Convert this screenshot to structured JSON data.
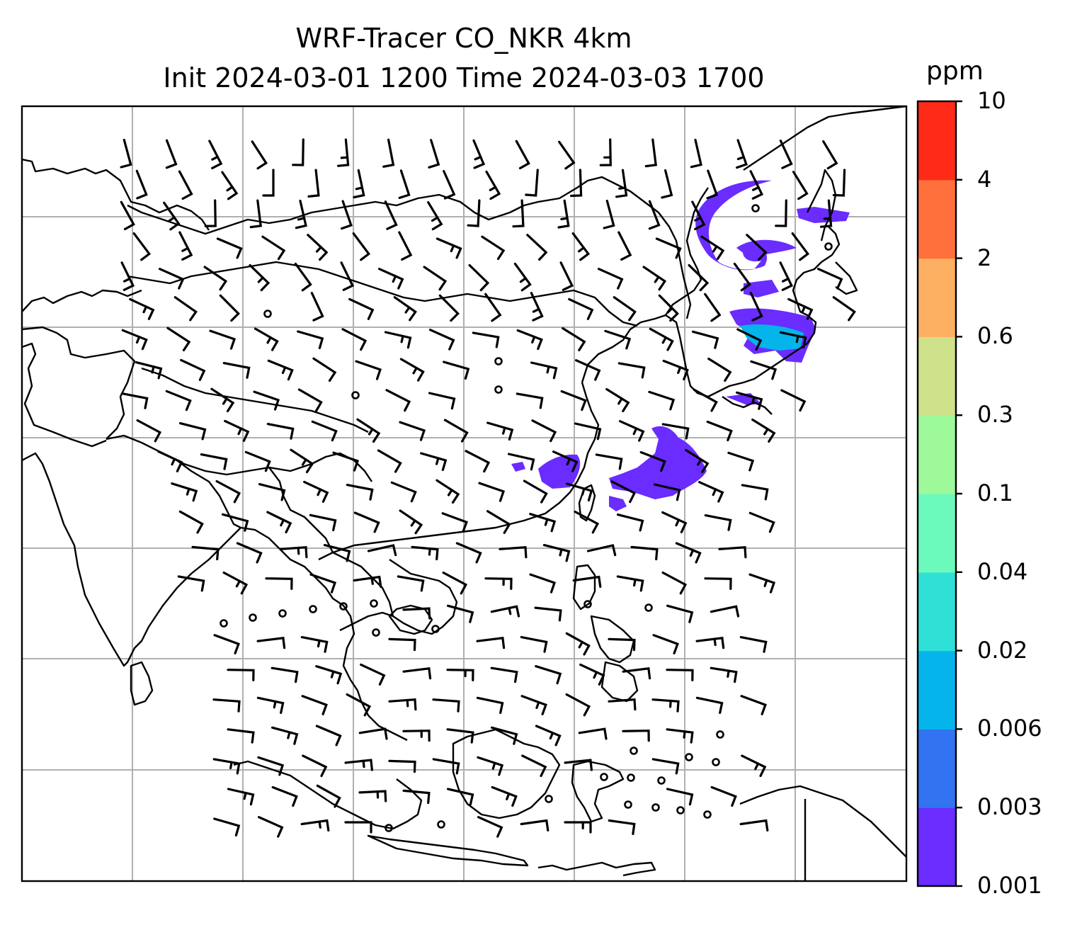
{
  "title": {
    "line1": "WRF-Tracer CO_NKR 4km",
    "line2": "Init 2024-03-01 1200 Time 2024-03-03 1700"
  },
  "colorbar": {
    "unit": "ppm",
    "levels": [
      "0.001",
      "0.003",
      "0.006",
      "0.02",
      "0.04",
      "0.1",
      "0.3",
      "0.6",
      "2",
      "4",
      "10"
    ],
    "colors": [
      "#6a2cff",
      "#3173f0",
      "#05b4ea",
      "#2fe0d6",
      "#6bfabc",
      "#9ef99b",
      "#cfe18a",
      "#fdb062",
      "#ff703d",
      "#ff2a18"
    ]
  },
  "map": {
    "gridlines": "on",
    "coastline_color": "#000000",
    "gridline_color": "#b0b0b0",
    "plume_color": "#6a2cff",
    "plume_secondary_color": "#05b4ea",
    "wind_barbs": "black"
  }
}
